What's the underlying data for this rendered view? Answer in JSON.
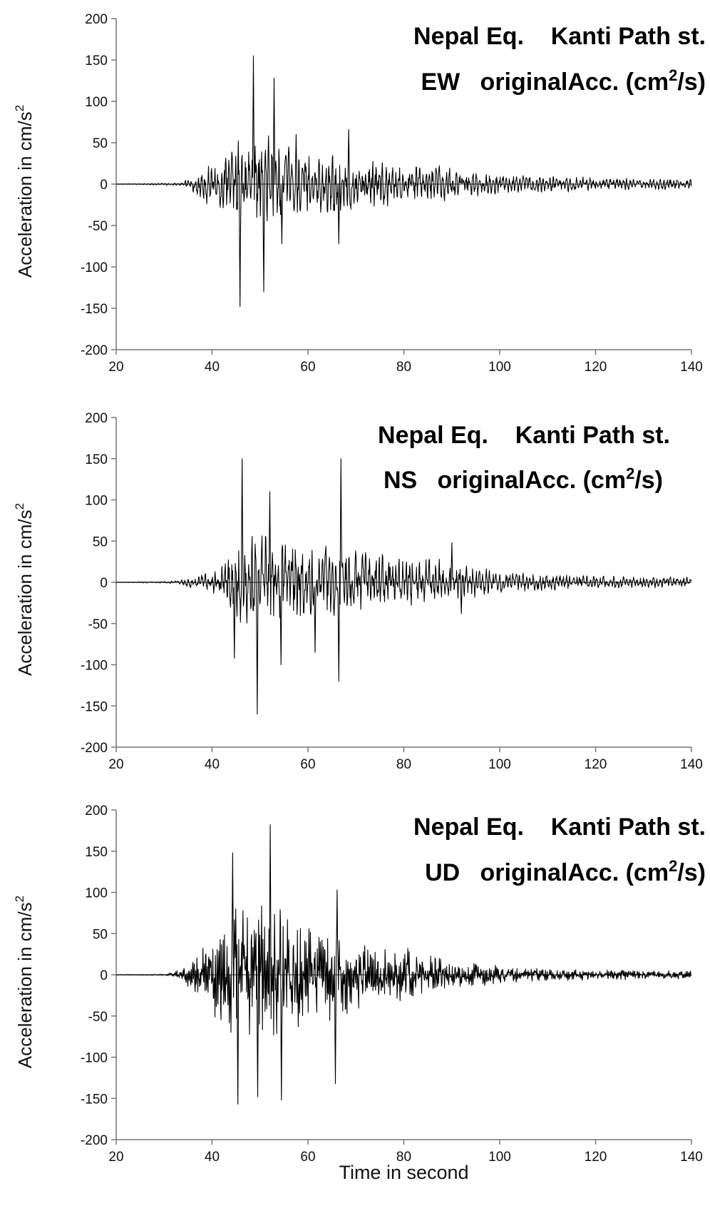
{
  "chart_data": [
    {
      "type": "line",
      "component": "EW",
      "title_line1": "Nepal Eq.    Kanti Path st.",
      "title_line2_prefix": "EW   originalAcc. (cm",
      "title_line2_sup": "2",
      "title_line2_suffix": "/s)",
      "ylabel": "Acceleration in cm/s",
      "ylabel_sup": "2",
      "xlabel": "",
      "xlim": [
        20,
        140
      ],
      "ylim": [
        -200,
        200
      ],
      "xticks": [
        20,
        40,
        60,
        80,
        100,
        120,
        140
      ],
      "yticks": [
        200,
        150,
        100,
        50,
        0,
        -50,
        -100,
        -150,
        -200
      ],
      "grid": false,
      "series": [
        {
          "kind": "accelerogram",
          "envelope": [
            [
              20,
              0.3
            ],
            [
              32,
              1.5
            ],
            [
              34,
              4
            ],
            [
              36,
              10
            ],
            [
              38,
              20
            ],
            [
              40,
              28
            ],
            [
              42,
              36
            ],
            [
              44,
              45
            ],
            [
              46,
              58
            ],
            [
              50,
              60
            ],
            [
              54,
              55
            ],
            [
              56,
              42
            ],
            [
              60,
              38
            ],
            [
              66,
              36
            ],
            [
              70,
              32
            ],
            [
              80,
              26
            ],
            [
              90,
              18
            ],
            [
              100,
              12
            ],
            [
              110,
              10
            ],
            [
              120,
              8
            ],
            [
              130,
              7
            ],
            [
              140,
              7
            ]
          ],
          "peaks": [
            [
              45.8,
              -148
            ],
            [
              48.6,
              155
            ],
            [
              50.8,
              -130
            ],
            [
              52.9,
              128
            ],
            [
              54.6,
              -72
            ],
            [
              66.4,
              -72
            ],
            [
              68.5,
              66
            ],
            [
              57.5,
              60
            ]
          ]
        }
      ]
    },
    {
      "type": "line",
      "component": "NS",
      "title_line1": "Nepal Eq.    Kanti Path st.",
      "title_line2_prefix": "NS   originalAcc. (cm",
      "title_line2_sup": "2",
      "title_line2_suffix": "/s)",
      "ylabel": "Acceleration in cm/s",
      "ylabel_sup": "2",
      "xlabel": "",
      "xlim": [
        20,
        140
      ],
      "ylim": [
        -200,
        200
      ],
      "xticks": [
        20,
        40,
        60,
        80,
        100,
        120,
        140
      ],
      "yticks": [
        200,
        150,
        100,
        50,
        0,
        -50,
        -100,
        -150,
        -200
      ],
      "grid": false,
      "series": [
        {
          "kind": "accelerogram",
          "envelope": [
            [
              20,
              0.3
            ],
            [
              32,
              1.5
            ],
            [
              34,
              4
            ],
            [
              36,
              8
            ],
            [
              40,
              14
            ],
            [
              43,
              24
            ],
            [
              46,
              55
            ],
            [
              52,
              60
            ],
            [
              56,
              55
            ],
            [
              60,
              45
            ],
            [
              66,
              42
            ],
            [
              70,
              38
            ],
            [
              80,
              30
            ],
            [
              90,
              26
            ],
            [
              100,
              14
            ],
            [
              110,
              10
            ],
            [
              120,
              8
            ],
            [
              130,
              7
            ],
            [
              140,
              7
            ]
          ],
          "peaks": [
            [
              44.7,
              -92
            ],
            [
              46.3,
              150
            ],
            [
              49.4,
              -160
            ],
            [
              52.0,
              110
            ],
            [
              54.4,
              -100
            ],
            [
              61.5,
              -85
            ],
            [
              66.4,
              -120
            ],
            [
              66.9,
              150
            ],
            [
              90.0,
              48
            ],
            [
              92.0,
              -38
            ]
          ]
        }
      ]
    },
    {
      "type": "line",
      "component": "UD",
      "title_line1": "Nepal Eq.    Kanti Path st.",
      "title_line2_prefix": "UD   originalAcc. (cm",
      "title_line2_sup": "2",
      "title_line2_suffix": "/s)",
      "ylabel": "Acceleration in cm/s",
      "ylabel_sup": "2",
      "xlabel": "Time in second",
      "xlim": [
        20,
        140
      ],
      "ylim": [
        -200,
        200
      ],
      "xticks": [
        20,
        40,
        60,
        80,
        100,
        120,
        140
      ],
      "yticks": [
        200,
        150,
        100,
        50,
        0,
        -50,
        -100,
        -150,
        -200
      ],
      "grid": false,
      "series": [
        {
          "kind": "accelerogram",
          "envelope": [
            [
              20,
              0.3
            ],
            [
              30,
              1
            ],
            [
              32,
              4
            ],
            [
              34,
              10
            ],
            [
              36,
              22
            ],
            [
              38,
              40
            ],
            [
              40,
              60
            ],
            [
              42,
              80
            ],
            [
              44,
              90
            ],
            [
              48,
              88
            ],
            [
              52,
              95
            ],
            [
              56,
              85
            ],
            [
              60,
              75
            ],
            [
              66,
              60
            ],
            [
              70,
              50
            ],
            [
              80,
              35
            ],
            [
              90,
              22
            ],
            [
              100,
              12
            ],
            [
              110,
              8
            ],
            [
              120,
              7
            ],
            [
              130,
              6
            ],
            [
              140,
              6
            ]
          ],
          "peaks": [
            [
              44.3,
              148
            ],
            [
              45.4,
              -157
            ],
            [
              52.1,
              182
            ],
            [
              54.5,
              -152
            ],
            [
              65.7,
              -132
            ],
            [
              66.1,
              103
            ],
            [
              49.5,
              -148
            ]
          ]
        }
      ]
    }
  ]
}
